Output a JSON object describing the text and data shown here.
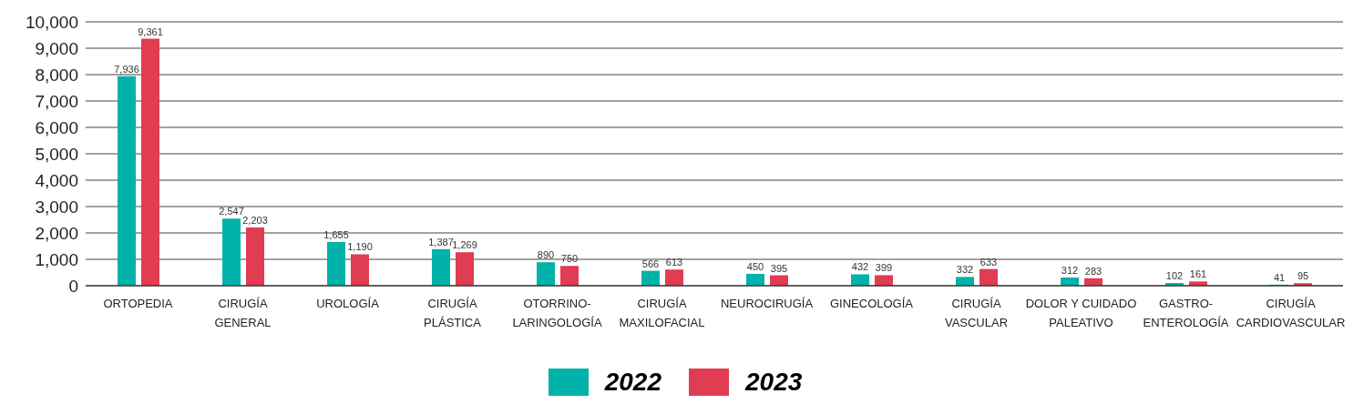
{
  "chart_data": {
    "type": "bar",
    "categories": [
      "ORTOPEDIA",
      "CIRUGÍA\nGENERAL",
      "UROLOGÍA",
      "CIRUGÍA\nPLÁSTICA",
      "OTORRINO-\nLARINGOLOGÍA",
      "CIRUGÍA\nMAXILOFACIAL",
      "NEUROCIRUGÍA",
      "GINECOLOGÍA",
      "CIRUGÍA\nVASCULAR",
      "DOLOR Y CUIDADO\nPALEATIVO",
      "GASTRO-\nENTEROLOGÍA",
      "CIRUGÍA\nCARDIOVASCULAR"
    ],
    "series": [
      {
        "name": "2022",
        "color": "#00b2a9",
        "values": [
          7936,
          2547,
          1655,
          1387,
          890,
          566,
          450,
          432,
          332,
          312,
          102,
          41
        ],
        "value_labels": [
          "7,936",
          "2,547",
          "1,655",
          "1,387",
          "890",
          "566",
          "450",
          "432",
          "332",
          "312",
          "102",
          "41"
        ]
      },
      {
        "name": "2023",
        "color": "#e03c52",
        "values": [
          9361,
          2203,
          1190,
          1269,
          750,
          613,
          395,
          399,
          633,
          283,
          161,
          95
        ],
        "value_labels": [
          "9,361",
          "2,203",
          "1,190",
          "1,269",
          "750",
          "613",
          "395",
          "399",
          "633",
          "283",
          "161",
          "95"
        ]
      }
    ],
    "ylim": [
      0,
      10000
    ],
    "yticks": [
      0,
      {
        "value": 1000,
        "label": "1,000"
      },
      {
        "value": 2000,
        "label": "2,000"
      },
      {
        "value": 3000,
        "label": "3,000"
      },
      {
        "value": 4000,
        "label": "4,000"
      },
      {
        "value": 5000,
        "label": "5,000"
      },
      {
        "value": 6000,
        "label": "6,000"
      },
      {
        "value": 7000,
        "label": "7,000"
      },
      {
        "value": 8000,
        "label": "8,000"
      },
      {
        "value": 9000,
        "label": "9,000"
      },
      {
        "value": 10000,
        "label": "10,000"
      }
    ],
    "grid": "y",
    "legend": "bottom"
  }
}
